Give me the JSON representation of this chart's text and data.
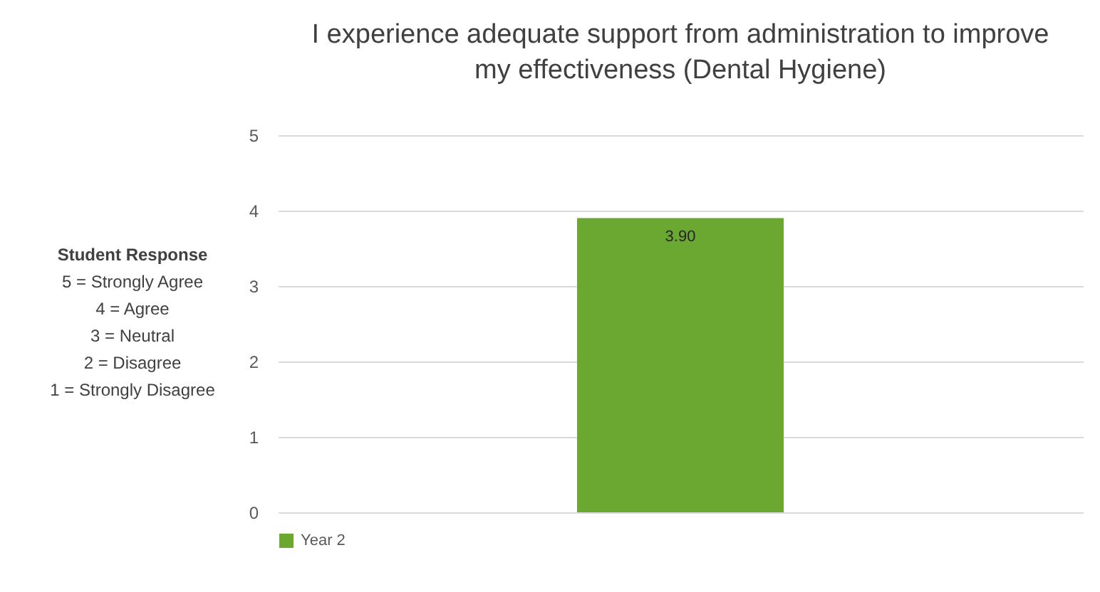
{
  "chart_data": {
    "type": "bar",
    "title": "I experience adequate support from administration to improve my effectiveness  (Dental Hygiene)",
    "categories": [
      null
    ],
    "series": [
      {
        "name": "Year 2",
        "color": "#6aa832",
        "values": [
          3.9
        ]
      }
    ],
    "value_labels": [
      "3.90"
    ],
    "ylim": [
      0,
      5
    ],
    "yticks": [
      0,
      1,
      2,
      3,
      4,
      5
    ],
    "grid": "y",
    "legend": "bottom",
    "tick_labels": "y",
    "annotations": [
      "Student Response",
      "5 = Strongly Agree",
      "4 = Agree",
      "3 = Neutral",
      "2 = Disagree",
      "1 = Strongly Disagree"
    ]
  }
}
